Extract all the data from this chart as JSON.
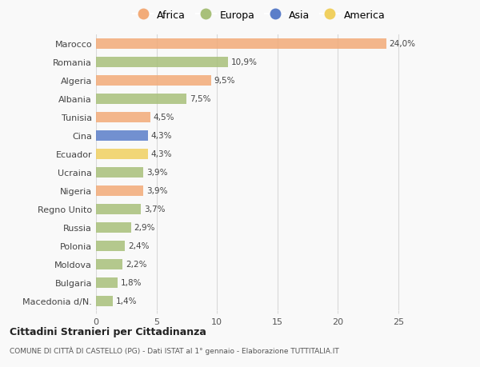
{
  "countries": [
    "Marocco",
    "Romania",
    "Algeria",
    "Albania",
    "Tunisia",
    "Cina",
    "Ecuador",
    "Ucraina",
    "Nigeria",
    "Regno Unito",
    "Russia",
    "Polonia",
    "Moldova",
    "Bulgaria",
    "Macedonia d/N."
  ],
  "values": [
    24.0,
    10.9,
    9.5,
    7.5,
    4.5,
    4.3,
    4.3,
    3.9,
    3.9,
    3.7,
    2.9,
    2.4,
    2.2,
    1.8,
    1.4
  ],
  "labels": [
    "24,0%",
    "10,9%",
    "9,5%",
    "7,5%",
    "4,5%",
    "4,3%",
    "4,3%",
    "3,9%",
    "3,9%",
    "3,7%",
    "2,9%",
    "2,4%",
    "2,2%",
    "1,8%",
    "1,4%"
  ],
  "continents": [
    "Africa",
    "Europa",
    "Africa",
    "Europa",
    "Africa",
    "Asia",
    "America",
    "Europa",
    "Africa",
    "Europa",
    "Europa",
    "Europa",
    "Europa",
    "Europa",
    "Europa"
  ],
  "colors": {
    "Africa": "#F2AB78",
    "Europa": "#A8C07A",
    "Asia": "#5B7EC9",
    "America": "#F0D060"
  },
  "legend_order": [
    "Africa",
    "Europa",
    "Asia",
    "America"
  ],
  "xlim": [
    0,
    27
  ],
  "xticks": [
    0,
    5,
    10,
    15,
    20,
    25
  ],
  "title": "Cittadini Stranieri per Cittadinanza",
  "subtitle": "COMUNE DI CITTÀ DI CASTELLO (PG) - Dati ISTAT al 1° gennaio - Elaborazione TUTTITALIA.IT",
  "bg_color": "#f9f9f9",
  "grid_color": "#d8d8d8",
  "bar_height": 0.55
}
